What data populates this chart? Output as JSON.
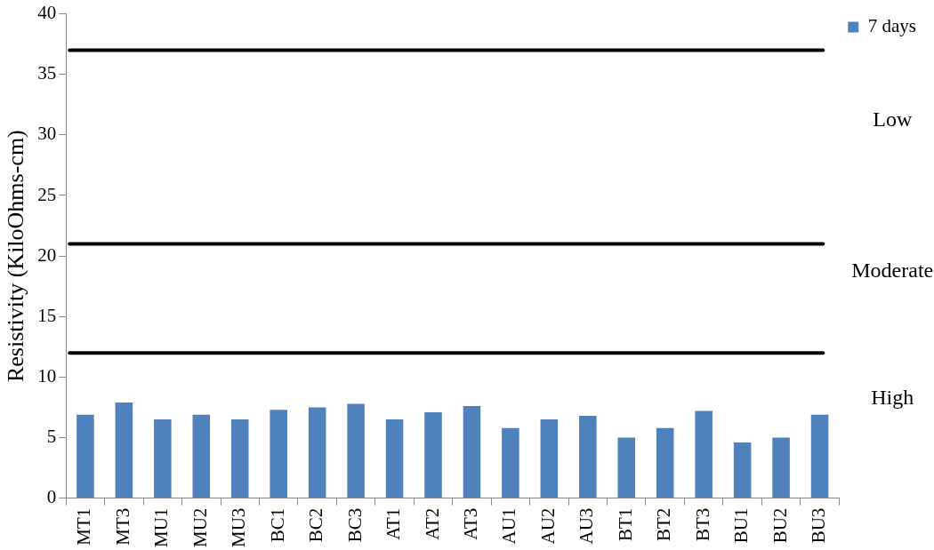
{
  "chart_data": {
    "type": "bar",
    "ylabel": "Resistivity (KiloOhms-cm)",
    "categories": [
      "MT1",
      "MT3",
      "MU1",
      "MU2",
      "MU3",
      "BC1",
      "BC2",
      "BC3",
      "AT1",
      "AT2",
      "AT3",
      "AU1",
      "AU2",
      "AU3",
      "BT1",
      "BT2",
      "BT3",
      "BU1",
      "BU2",
      "BU3"
    ],
    "series": [
      {
        "name": "7 days",
        "color": "#4f81bd",
        "values": [
          6.9,
          7.9,
          6.5,
          6.9,
          6.5,
          7.3,
          7.5,
          7.8,
          6.5,
          7.1,
          7.6,
          5.8,
          6.5,
          6.8,
          5.0,
          5.8,
          7.2,
          4.6,
          5.0,
          6.9
        ]
      }
    ],
    "ylim": [
      0,
      40
    ],
    "yticks": [
      0,
      5,
      10,
      15,
      20,
      25,
      30,
      35,
      40
    ],
    "grid": false,
    "legend": "top right",
    "ref_lines": [
      {
        "axis": "y",
        "value": 37,
        "color": "#000000"
      },
      {
        "axis": "y",
        "value": 21,
        "color": "#000000"
      },
      {
        "axis": "y",
        "value": 12,
        "color": "#000000"
      }
    ],
    "annotations": [
      "Low",
      "Moderate",
      "High"
    ]
  }
}
